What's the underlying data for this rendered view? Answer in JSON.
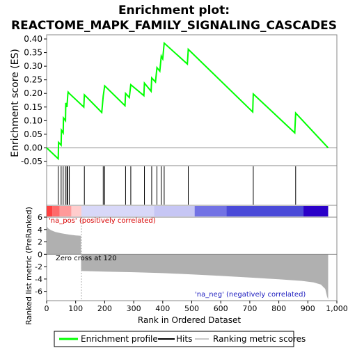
{
  "chart_data": {
    "type": "line",
    "title_line1": "Enrichment plot:",
    "title_line2": "REACTOME_MAPK_FAMILY_SIGNALING_CASCADES",
    "es_ylabel": "Enrichment score (ES)",
    "es_ylim": [
      -0.05,
      0.4
    ],
    "es_yticks": [
      "0.40",
      "0.35",
      "0.30",
      "0.25",
      "0.20",
      "0.15",
      "0.10",
      "0.05",
      "0.00",
      "-0.05"
    ],
    "es_ytick_values": [
      0.4,
      0.35,
      0.3,
      0.25,
      0.2,
      0.15,
      0.1,
      0.05,
      0.0,
      -0.05
    ],
    "es_profile": {
      "x": [
        0,
        40,
        41,
        50,
        51,
        57,
        58,
        65,
        66,
        70,
        73,
        74,
        78,
        128,
        130,
        190,
        195,
        200,
        270,
        272,
        285,
        290,
        335,
        337,
        360,
        362,
        375,
        380,
        390,
        395,
        400,
        405,
        485,
        488,
        710,
        712,
        855,
        858,
        970
      ],
      "y": [
        0.0,
        -0.04,
        0.02,
        0.01,
        0.065,
        0.055,
        0.11,
        0.1,
        0.165,
        0.15,
        0.195,
        0.205,
        0.2,
        0.15,
        0.195,
        0.13,
        0.19,
        0.228,
        0.155,
        0.2,
        0.185,
        0.232,
        0.192,
        0.238,
        0.208,
        0.257,
        0.242,
        0.295,
        0.282,
        0.337,
        0.327,
        0.385,
        0.308,
        0.362,
        0.132,
        0.198,
        0.055,
        0.128,
        0.0
      ]
    },
    "hits": [
      40,
      50,
      57,
      65,
      70,
      73,
      78,
      130,
      195,
      200,
      272,
      290,
      337,
      362,
      380,
      395,
      405,
      488,
      712,
      858
    ],
    "metric_ylabel": "Ranked list metric (PreRanked)",
    "metric_ylim": [
      -7.5,
      6
    ],
    "metric_yticks": [
      "6",
      "4",
      "2",
      "0",
      "-2",
      "-4",
      "-6"
    ],
    "metric_ytick_values": [
      6,
      4,
      2,
      0,
      -2,
      -4,
      -6
    ],
    "metric_curve": {
      "x": [
        0,
        5,
        15,
        30,
        50,
        80,
        100,
        118,
        119,
        130,
        200,
        300,
        400,
        500,
        600,
        700,
        800,
        880,
        920,
        945,
        960,
        966,
        970
      ],
      "y": [
        4.6,
        4.2,
        3.9,
        3.6,
        3.4,
        3.15,
        3.05,
        3.0,
        -2.7,
        -2.72,
        -2.8,
        -2.9,
        -3.05,
        -3.25,
        -3.5,
        -3.75,
        -4.05,
        -4.3,
        -4.55,
        -4.9,
        -5.6,
        -6.8,
        -7.3
      ]
    },
    "zero_cross_label": "Zero cross at 120",
    "zero_cross_rank": 120,
    "pos_label": "'na_pos' (positively correlated)",
    "neg_label": "'na_neg' (negatively correlated)",
    "xlabel": "Rank in Ordered Dataset",
    "xlim": [
      0,
      1000
    ],
    "xticks": [
      "0",
      "100",
      "200",
      "300",
      "400",
      "500",
      "600",
      "700",
      "800",
      "900",
      "1,000"
    ],
    "xtick_values": [
      0,
      100,
      200,
      300,
      400,
      500,
      600,
      700,
      800,
      900,
      1000
    ],
    "heat_segments": [
      {
        "start": 0,
        "end": 20,
        "color": "#ff4040"
      },
      {
        "start": 20,
        "end": 45,
        "color": "#ff6a6a"
      },
      {
        "start": 45,
        "end": 85,
        "color": "#ff9a9a"
      },
      {
        "start": 85,
        "end": 120,
        "color": "#ffcdcd"
      },
      {
        "start": 120,
        "end": 370,
        "color": "#d8d8f8"
      },
      {
        "start": 370,
        "end": 510,
        "color": "#c6c6f4"
      },
      {
        "start": 510,
        "end": 620,
        "color": "#7272e4"
      },
      {
        "start": 620,
        "end": 885,
        "color": "#4a4ad8"
      },
      {
        "start": 885,
        "end": 970,
        "color": "#2a00c8"
      }
    ],
    "colors": {
      "es_line": "#00ff00",
      "hit_line": "#000000",
      "metric_fill": "#b0b0b0",
      "pos_label": "#d80000",
      "neg_label": "#2020c0",
      "zero_line": "#b0b0b0"
    },
    "legend": {
      "items": [
        {
          "label": "Enrichment profile",
          "color": "#00ff00"
        },
        {
          "label": "Hits",
          "color": "#000000"
        },
        {
          "label": "Ranking metric scores",
          "color": "#c8c8c8"
        }
      ]
    }
  }
}
